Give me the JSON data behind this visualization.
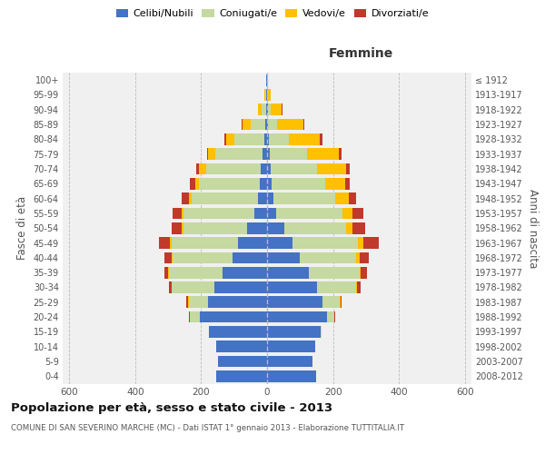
{
  "age_groups": [
    "0-4",
    "5-9",
    "10-14",
    "15-19",
    "20-24",
    "25-29",
    "30-34",
    "35-39",
    "40-44",
    "45-49",
    "50-54",
    "55-59",
    "60-64",
    "65-69",
    "70-74",
    "75-79",
    "80-84",
    "85-89",
    "90-94",
    "95-99",
    "100+"
  ],
  "birth_years": [
    "2008-2012",
    "2003-2007",
    "1998-2002",
    "1993-1997",
    "1988-1992",
    "1983-1987",
    "1978-1982",
    "1973-1977",
    "1968-1972",
    "1963-1967",
    "1958-1962",
    "1953-1957",
    "1948-1952",
    "1943-1947",
    "1938-1942",
    "1933-1937",
    "1928-1932",
    "1923-1927",
    "1918-1922",
    "1913-1917",
    "≤ 1912"
  ],
  "male_celibi": [
    155,
    148,
    155,
    175,
    205,
    180,
    160,
    135,
    105,
    88,
    62,
    38,
    28,
    22,
    18,
    15,
    7,
    5,
    3,
    2,
    2
  ],
  "male_coniugati": [
    0,
    0,
    0,
    2,
    28,
    58,
    128,
    162,
    182,
    202,
    192,
    215,
    202,
    185,
    168,
    143,
    92,
    44,
    14,
    4,
    1
  ],
  "male_vedovi": [
    0,
    0,
    0,
    0,
    1,
    2,
    2,
    2,
    3,
    5,
    5,
    5,
    8,
    12,
    20,
    20,
    25,
    25,
    10,
    2,
    0
  ],
  "male_divorziati": [
    0,
    0,
    0,
    0,
    2,
    4,
    8,
    12,
    22,
    32,
    30,
    28,
    22,
    15,
    10,
    5,
    5,
    2,
    0,
    0,
    0
  ],
  "female_celibi": [
    148,
    138,
    145,
    162,
    182,
    168,
    152,
    128,
    98,
    78,
    52,
    28,
    18,
    14,
    10,
    8,
    5,
    3,
    2,
    1,
    1
  ],
  "female_coniugati": [
    0,
    0,
    0,
    4,
    22,
    52,
    118,
    152,
    172,
    198,
    188,
    202,
    188,
    162,
    142,
    112,
    62,
    28,
    8,
    2,
    0
  ],
  "female_vedovi": [
    0,
    0,
    0,
    0,
    1,
    2,
    3,
    4,
    10,
    15,
    18,
    28,
    42,
    62,
    88,
    98,
    92,
    78,
    34,
    8,
    1
  ],
  "female_divorziati": [
    0,
    0,
    0,
    0,
    2,
    5,
    10,
    18,
    28,
    48,
    40,
    35,
    22,
    12,
    10,
    8,
    8,
    5,
    2,
    0,
    0
  ],
  "color_celibi": "#4472c4",
  "color_coniugati": "#c5d9a0",
  "color_vedovi": "#ffc000",
  "color_divorziati": "#c0392b",
  "title": "Popolazione per età, sesso e stato civile - 2013",
  "subtitle": "COMUNE DI SAN SEVERINO MARCHE (MC) - Dati ISTAT 1° gennaio 2013 - Elaborazione TUTTITALIA.IT",
  "label_femmine": "Femmine",
  "ylabel_left": "Fasce di età",
  "ylabel_right": "Anni di nascita",
  "legend_labels": [
    "Celibi/Nubili",
    "Coniugati/e",
    "Vedovi/e",
    "Divorziati/e"
  ],
  "xlim": 620,
  "bg_color": "#f0f0f0",
  "grid_color": "#cccccc"
}
